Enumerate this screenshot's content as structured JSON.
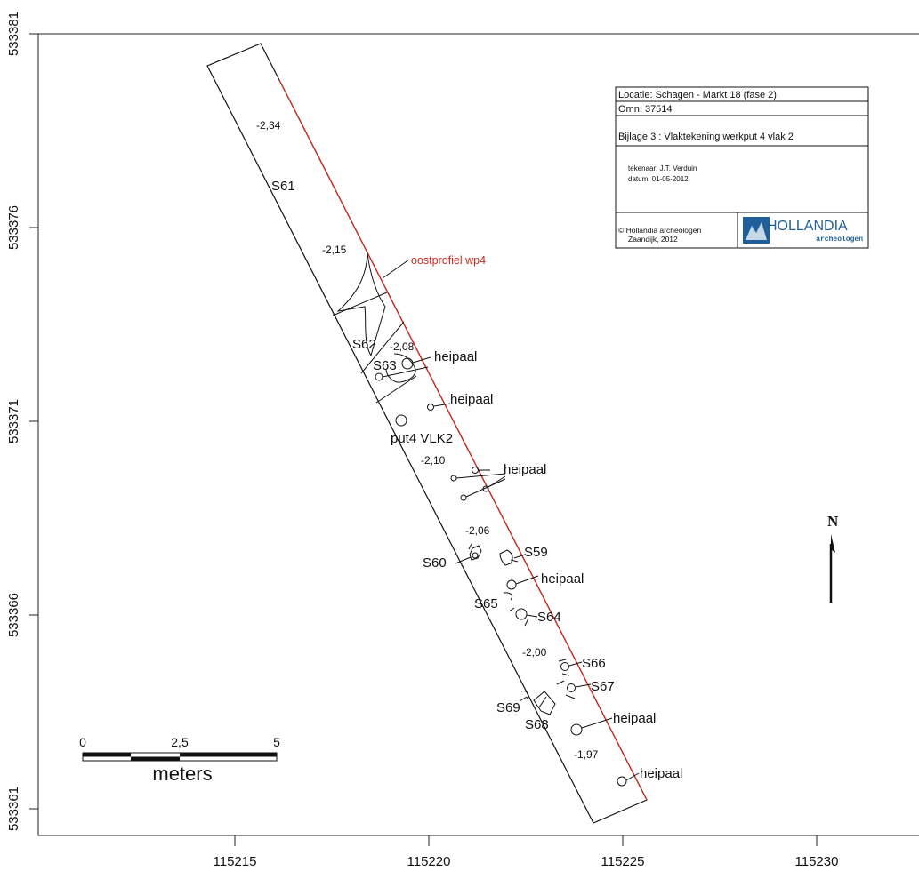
{
  "axes": {
    "x_ticks": [
      "115215",
      "115220",
      "115225",
      "115230"
    ],
    "y_ticks": [
      "533381",
      "533376",
      "533371",
      "533366",
      "533361"
    ]
  },
  "title_block": {
    "locatie": "Locatie: Schagen - Markt 18 (fase 2)",
    "omn": "Omn: 37514",
    "bijlage": "Bijlage 3 : Vlaktekening werkput 4 vlak 2",
    "tekenaar": "tekenaar: J.T. Verduin",
    "datum": "datum: 01-05-2012",
    "copyright_line1": "© Hollandia archeologen",
    "copyright_line2": "Zaandijk, 2012",
    "logo_name": "HOLLANDIA",
    "logo_sub": "archeologen"
  },
  "features": {
    "S61": "S61",
    "S62": "S62",
    "S63": "S63",
    "S59": "S59",
    "S60": "S60",
    "S64": "S64",
    "S65": "S65",
    "S66": "S66",
    "S67": "S67",
    "S68": "S68",
    "S69": "S69"
  },
  "heipaal": "heipaal",
  "put_label": "put4 VLK2",
  "profile_label": "oostprofiel wp4",
  "depths": {
    "d1": "-2,34",
    "d2": "-2,15",
    "d3": "-2,08",
    "d4": "-2,10",
    "d5": "-2,06",
    "d6": "-2,00",
    "d7": "-1,97"
  },
  "north": "N",
  "scalebar": {
    "t0": "0",
    "t1": "2,5",
    "t2": "5",
    "unit": "meters"
  },
  "colors": {
    "profile_red": "#d22a1e",
    "logo_blue": "#1f5f9a"
  }
}
